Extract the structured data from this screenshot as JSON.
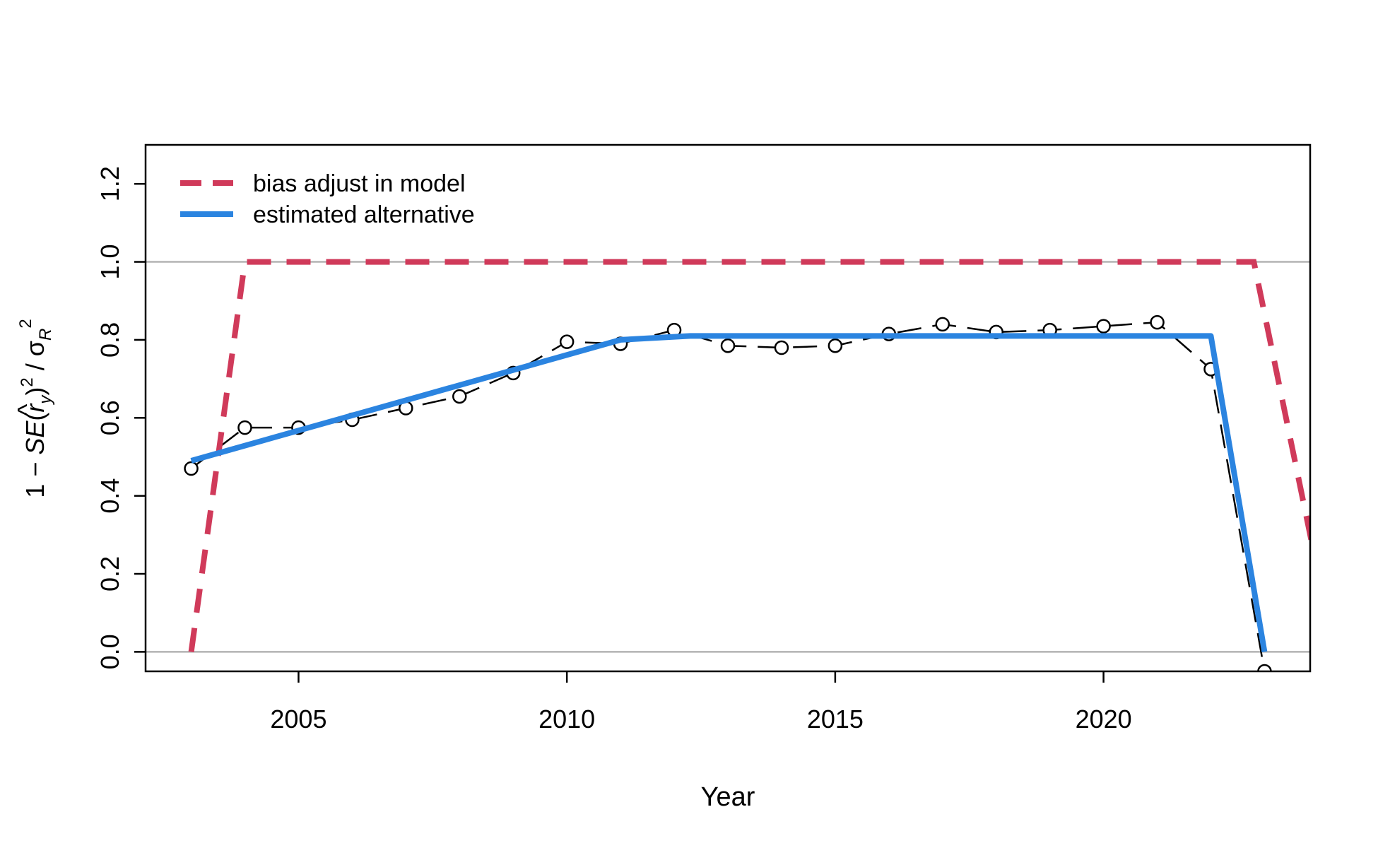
{
  "chart_data": {
    "type": "line",
    "title": "",
    "xlabel": "Year",
    "ylabel": "1 − SE(r̂y)² / σR²",
    "xlim": [
      2002.15,
      2023.85
    ],
    "ylim": [
      -0.05,
      1.3
    ],
    "x_ticks": [
      "2005",
      "2010",
      "2015",
      "2020"
    ],
    "y_ticks": [
      "0.0",
      "0.2",
      "0.4",
      "0.6",
      "0.8",
      "1.0",
      "1.2"
    ],
    "reference_lines": [
      0,
      1
    ],
    "grid": false,
    "legend_position": "top-left",
    "colors": {
      "bias_adjust": "#d03a5a",
      "estimated": "#2b84e0",
      "points": "#000000",
      "reference": "#b3b3b3"
    },
    "series": [
      {
        "name": "bias adjust in model",
        "style": "dashed",
        "x": [
          2003,
          2004,
          2022.8,
          2024
        ],
        "y": [
          0,
          1,
          1,
          0.2
        ]
      },
      {
        "name": "estimated alternative",
        "style": "solid",
        "x": [
          2003,
          2011,
          2012.3,
          2022,
          2023
        ],
        "y": [
          0.49,
          0.8,
          0.81,
          0.81,
          0
        ]
      },
      {
        "name": "",
        "style": "points-dashed",
        "x": [
          2003,
          2004,
          2005,
          2006,
          2007,
          2008,
          2009,
          2010,
          2011,
          2012,
          2013,
          2014,
          2015,
          2016,
          2017,
          2018,
          2019,
          2020,
          2021,
          2022,
          2023
        ],
        "y": [
          0.47,
          0.575,
          0.575,
          0.595,
          0.625,
          0.655,
          0.715,
          0.795,
          0.79,
          0.825,
          0.785,
          0.78,
          0.785,
          0.815,
          0.84,
          0.82,
          0.825,
          0.835,
          0.845,
          0.725,
          -0.05
        ]
      }
    ]
  }
}
